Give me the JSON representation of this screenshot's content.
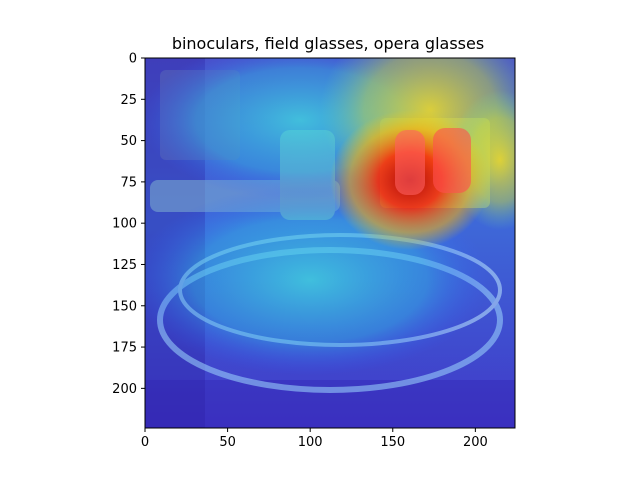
{
  "chart_data": {
    "type": "heatmap",
    "title": "binoculars, field glasses, opera glasses",
    "xlabel": "",
    "ylabel": "",
    "xlim": [
      0,
      224
    ],
    "ylim": [
      224,
      0
    ],
    "xticks": [
      0,
      50,
      100,
      150,
      200
    ],
    "yticks": [
      0,
      25,
      50,
      75,
      100,
      125,
      150,
      175,
      200
    ],
    "grid": false,
    "colormap": "jet",
    "overlay_on_image": true,
    "hotspots": [
      {
        "x": 150,
        "y": 75,
        "intensity": 1.0,
        "radius": 28
      },
      {
        "x": 165,
        "y": 40,
        "intensity": 0.7,
        "radius": 45
      },
      {
        "x": 210,
        "y": 70,
        "intensity": 0.6,
        "radius": 30
      },
      {
        "x": 120,
        "y": 85,
        "intensity": 0.55,
        "radius": 40
      },
      {
        "x": 100,
        "y": 125,
        "intensity": 0.45,
        "radius": 60
      }
    ]
  },
  "figure": {
    "background": "#ffffff"
  }
}
